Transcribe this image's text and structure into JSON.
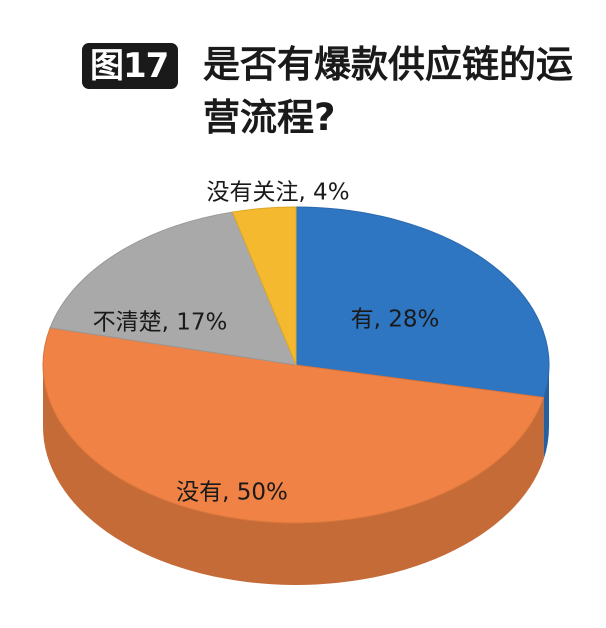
{
  "header": {
    "badge": "图17",
    "title": "是否有爆款供应链的运营流程?"
  },
  "chart_data": {
    "type": "pie",
    "title": "是否有爆款供应链的运营流程?",
    "slices": [
      {
        "label": "有, 28%",
        "category": "有",
        "value": 28,
        "color": "#2e75c2"
      },
      {
        "label": "没有, 50%",
        "category": "没有",
        "value": 50,
        "color": "#ef8244"
      },
      {
        "label": "不清楚, 17%",
        "category": "不清楚",
        "value": 17,
        "color": "#a9a9a9"
      },
      {
        "label": "没有关注, 4%",
        "category": "没有关注",
        "value": 4,
        "color": "#f4b92e"
      }
    ],
    "style": "3d",
    "legend": "none"
  }
}
